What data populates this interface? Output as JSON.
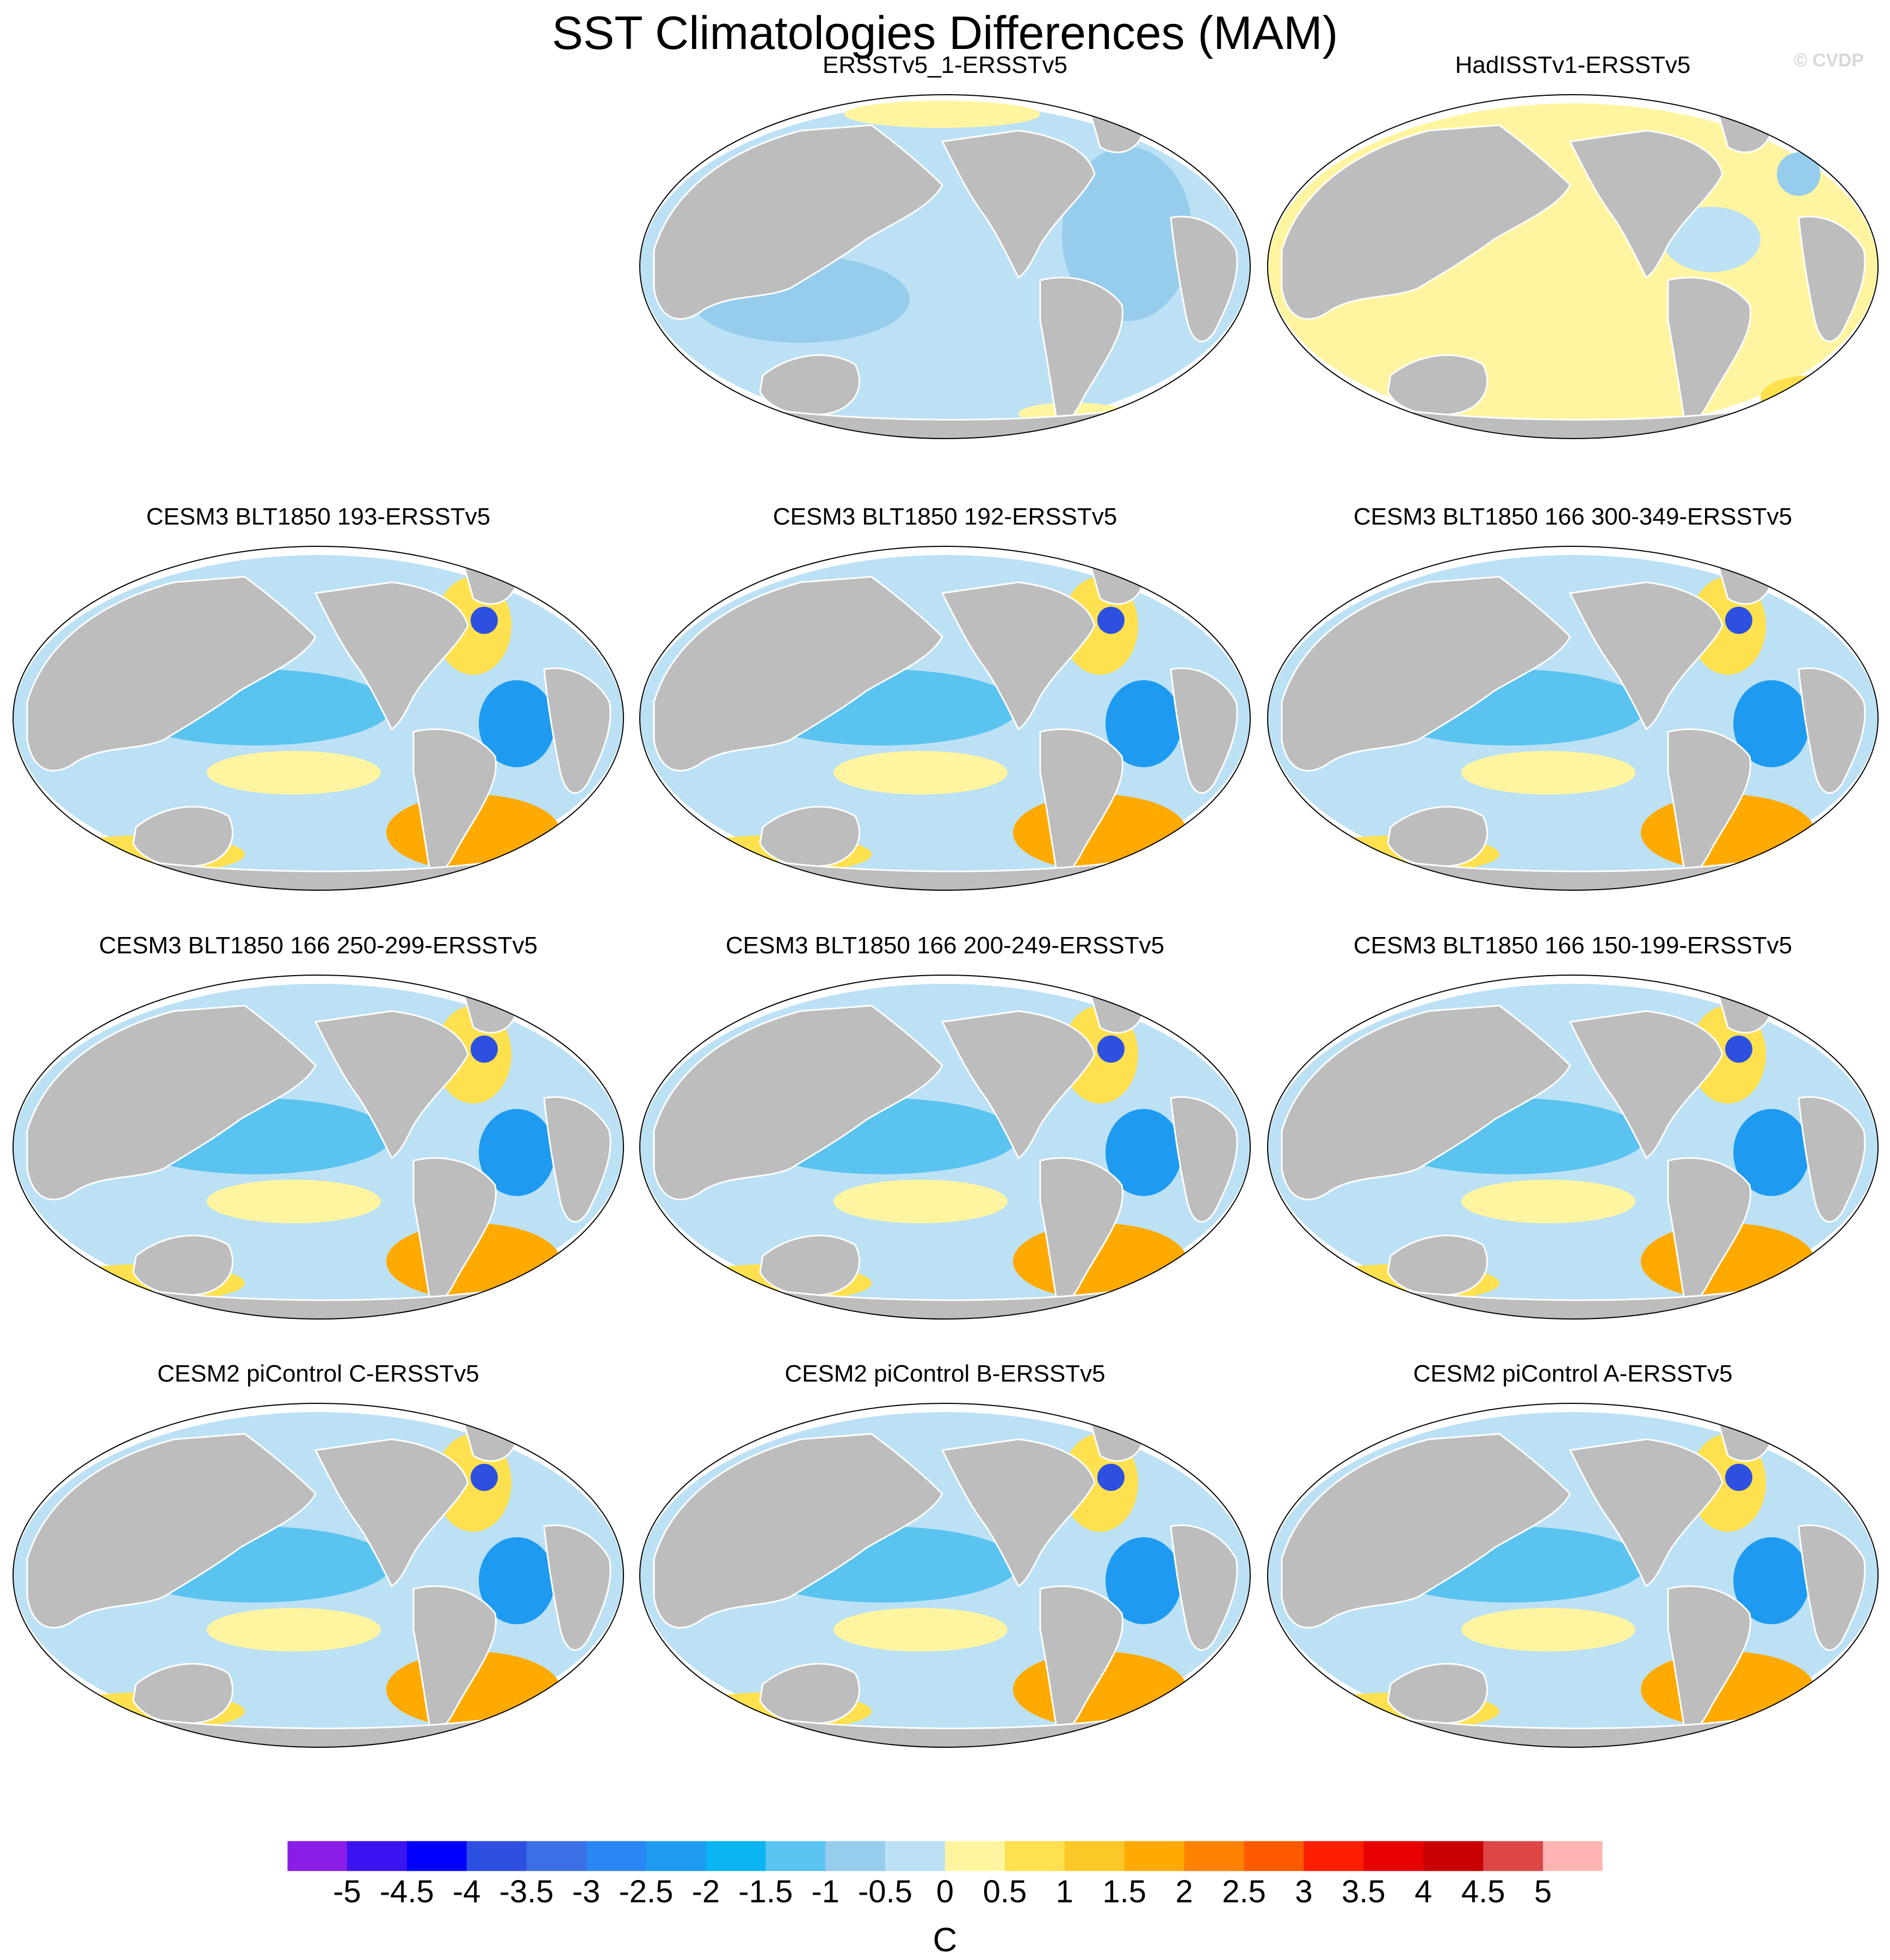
{
  "chart_data": {
    "type": "heatmap",
    "title": "SST Climatologies Differences (MAM)",
    "watermark": "© CVDP",
    "colorbar": {
      "unit": "C",
      "tick_labels": [
        "-5",
        "-4.5",
        "-4",
        "-3.5",
        "-3",
        "-2.5",
        "-2",
        "-1.5",
        "-1",
        "-0.5",
        "0",
        "0.5",
        "1",
        "1.5",
        "2",
        "2.5",
        "3",
        "3.5",
        "4",
        "4.5",
        "5"
      ],
      "range": [
        -5.5,
        5.5
      ],
      "colors": [
        "#8a1ee6",
        "#3c14f0",
        "#0000ff",
        "#2d50e1",
        "#3b6fe6",
        "#2a86f2",
        "#1e9bf0",
        "#0ab4f0",
        "#5ac3f0",
        "#96cdec",
        "#bce1f5",
        "#fff5a0",
        "#ffe150",
        "#fcc828",
        "#ffaa00",
        "#ff8200",
        "#ff5a00",
        "#ff1e00",
        "#e60000",
        "#c80000",
        "#dc4646",
        "#ffb4b4"
      ]
    },
    "panels": [
      {
        "title": "ERSSTv5_1-ERSSTv5",
        "dominant_sign": "cool"
      },
      {
        "title": "HadISSTv1-ERSSTv5",
        "dominant_sign": "warm"
      },
      {
        "title": "CESM3 BLT1850 193-ERSSTv5",
        "dominant_sign": "mixed"
      },
      {
        "title": "CESM3 BLT1850 192-ERSSTv5",
        "dominant_sign": "mixed"
      },
      {
        "title": "CESM3 BLT1850 166 300-349-ERSSTv5",
        "dominant_sign": "mixed"
      },
      {
        "title": "CESM3 BLT1850 166 250-299-ERSSTv5",
        "dominant_sign": "mixed"
      },
      {
        "title": "CESM3 BLT1850 166 200-249-ERSSTv5",
        "dominant_sign": "mixed"
      },
      {
        "title": "CESM3 BLT1850 166 150-199-ERSSTv5",
        "dominant_sign": "mixed"
      },
      {
        "title": "CESM2 piControl C-ERSSTv5",
        "dominant_sign": "mixed"
      },
      {
        "title": "CESM2 piControl B-ERSSTv5",
        "dominant_sign": "mixed"
      },
      {
        "title": "CESM2 piControl A-ERSSTv5",
        "dominant_sign": "mixed"
      }
    ]
  }
}
